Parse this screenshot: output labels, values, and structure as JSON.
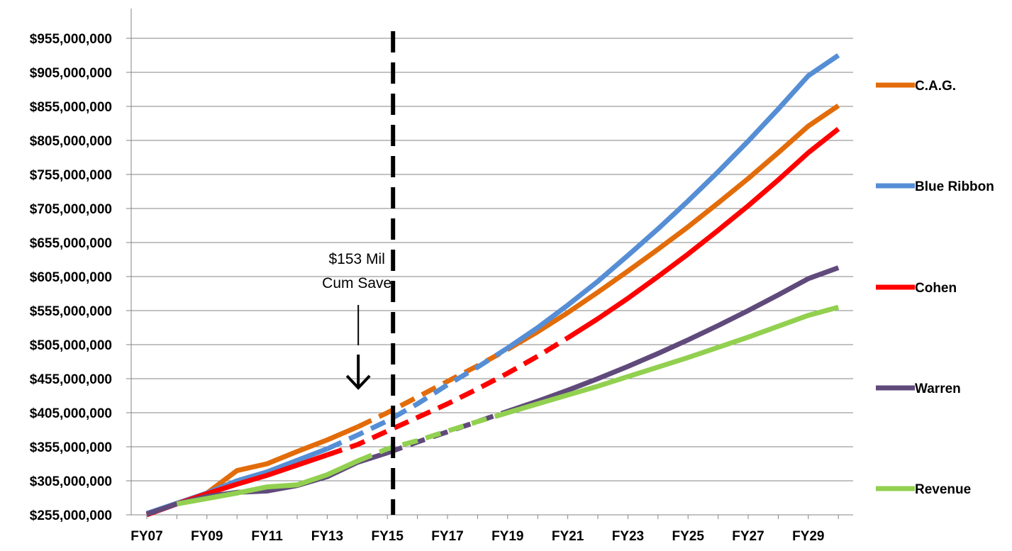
{
  "chart_data": {
    "type": "line",
    "title": "",
    "xlabel": "",
    "ylabel": "",
    "categories": [
      "FY07",
      "FY08",
      "FY09",
      "FY10",
      "FY11",
      "FY12",
      "FY13",
      "FY14",
      "FY15",
      "FY16",
      "FY17",
      "FY18",
      "FY19",
      "FY20",
      "FY21",
      "FY22",
      "FY23",
      "FY24",
      "FY25",
      "FY26",
      "FY27",
      "FY28",
      "FY29",
      "FY30"
    ],
    "x_tick_labels": [
      "FY07",
      "FY09",
      "FY11",
      "FY13",
      "FY15",
      "FY17",
      "FY19",
      "FY21",
      "FY23",
      "FY25",
      "FY27",
      "FY29"
    ],
    "y_tick_labels": [
      "$255,000,000",
      "$305,000,000",
      "$355,000,000",
      "$405,000,000",
      "$455,000,000",
      "$505,000,000",
      "$555,000,000",
      "$605,000,000",
      "$655,000,000",
      "$705,000,000",
      "$755,000,000",
      "$805,000,000",
      "$855,000,000",
      "$905,000,000",
      "$955,000,000"
    ],
    "ylim": [
      255000000,
      955000000
    ],
    "grid": "horizontal",
    "legend_position": "right",
    "divider_at": "FY15",
    "series": [
      {
        "name": "C.A.G.",
        "color": "#E36C0A",
        "values": [
          257000000,
          271000000,
          287000000,
          320000000,
          330000000,
          348000000,
          365000000,
          384000000,
          405000000,
          428000000,
          451000000,
          474000000,
          498000000,
          524000000,
          552000000,
          582000000,
          613000000,
          645000000,
          678000000,
          713000000,
          749000000,
          787000000,
          826000000,
          856000000
        ],
        "solid_ranges": [
          [
            0,
            7
          ],
          [
            12,
            23
          ]
        ],
        "dashed_ranges": [
          [
            7,
            12
          ]
        ]
      },
      {
        "name": "Blue Ribbon",
        "color": "#558ED5",
        "values": [
          257000000,
          272000000,
          287000000,
          305000000,
          318000000,
          335000000,
          352000000,
          372000000,
          393000000,
          418000000,
          446000000,
          472000000,
          500000000,
          530000000,
          563000000,
          598000000,
          636000000,
          675000000,
          716000000,
          759000000,
          804000000,
          851000000,
          900000000,
          930000000
        ],
        "solid_ranges": [
          [
            0,
            6
          ],
          [
            12,
            23
          ]
        ],
        "dashed_ranges": [
          [
            6,
            12
          ]
        ]
      },
      {
        "name": "Cohen",
        "color": "#FF0000",
        "values": [
          255000000,
          271000000,
          286000000,
          300000000,
          313000000,
          328000000,
          343000000,
          358000000,
          378000000,
          398000000,
          418000000,
          440000000,
          463000000,
          488000000,
          515000000,
          543000000,
          573000000,
          605000000,
          638000000,
          673000000,
          709000000,
          747000000,
          787000000,
          822000000
        ],
        "solid_ranges": [
          [
            0,
            6
          ],
          [
            14,
            23
          ]
        ],
        "dashed_ranges": [
          [
            6,
            14
          ]
        ]
      },
      {
        "name": "Warren",
        "color": "#604A7B",
        "values": [
          256000000,
          271000000,
          282000000,
          288000000,
          290000000,
          298000000,
          311000000,
          332000000,
          346000000,
          362000000,
          377000000,
          392000000,
          407000000,
          422000000,
          438000000,
          455000000,
          473000000,
          492000000,
          512000000,
          533000000,
          555000000,
          578000000,
          602000000,
          618000000
        ],
        "solid_ranges": [
          [
            0,
            8
          ],
          [
            12,
            23
          ]
        ],
        "dashed_ranges": [
          [
            8,
            12
          ]
        ]
      },
      {
        "name": "Revenue",
        "color": "#92D050",
        "values": [
          null,
          271000000,
          279000000,
          287000000,
          296000000,
          299000000,
          314000000,
          334000000,
          352000000,
          364000000,
          378000000,
          392000000,
          405000000,
          418000000,
          431000000,
          444000000,
          458000000,
          472000000,
          486000000,
          501000000,
          516000000,
          532000000,
          548000000,
          560000000
        ],
        "solid_ranges": [
          [
            1,
            7
          ],
          [
            12,
            23
          ]
        ],
        "dashed_ranges": [
          [
            7,
            12
          ]
        ]
      }
    ],
    "annotations": [
      {
        "lines": [
          "$153 Mil",
          "Cum Save"
        ],
        "arrow": "down",
        "at": "FY15",
        "y_value": 420000000
      }
    ]
  }
}
